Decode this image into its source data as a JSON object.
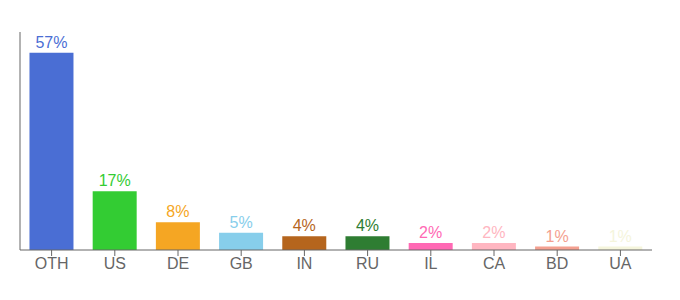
{
  "chart_data": {
    "type": "bar",
    "categories": [
      "OTH",
      "US",
      "DE",
      "GB",
      "IN",
      "RU",
      "IL",
      "CA",
      "BD",
      "UA"
    ],
    "values": [
      57,
      17,
      8,
      5,
      4,
      4,
      2,
      2,
      1,
      1
    ],
    "value_labels": [
      "57%",
      "17%",
      "8%",
      "5%",
      "4%",
      "4%",
      "2%",
      "2%",
      "1%",
      "1%"
    ],
    "colors": [
      "#4a6ed4",
      "#33cc33",
      "#f5a623",
      "#87ceeb",
      "#b5651d",
      "#2e7d32",
      "#ff69b4",
      "#ffb6c1",
      "#f4a090",
      "#f5f5dc"
    ],
    "ylim": [
      0,
      63
    ],
    "data_labels": true,
    "tick_labels": "x",
    "grid": false
  }
}
